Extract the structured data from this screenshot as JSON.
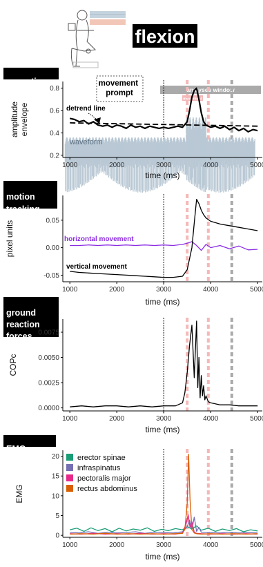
{
  "header": {
    "title": "flexion",
    "prompt_label": "movement\nprompt",
    "analysis_window_label": "analyses window",
    "movement_label": "movement"
  },
  "colors": {
    "black": "#000000",
    "waveform": "#b9c8d4",
    "horizontal": "#8a2be2",
    "prompt_line": "#000000",
    "movement_band": "#f4b8b8",
    "window_band": "#aaaaaa",
    "emg_erector": "#1b9e77",
    "emg_infraspinatus": "#7570b3",
    "emg_pectoralis": "#e7298a",
    "emg_rectus": "#d95f02"
  },
  "markers": {
    "prompt_ms": 3000,
    "movement_onset_ms": 3500,
    "movement_peak_ms": 3950,
    "window_end_ms": 4450
  },
  "chart_data": [
    {
      "type": "line",
      "panel_label": "acoustics",
      "xlabel": "time (ms)",
      "ylabel": "amplitude\nenvelope",
      "xlim": [
        850,
        5100
      ],
      "ylim": [
        0.18,
        0.86
      ],
      "xticks": [
        1000,
        2000,
        3000,
        4000,
        5000
      ],
      "yticks": [
        0.2,
        0.4,
        0.6,
        0.8
      ],
      "ytick_labels": [
        "0.2",
        "0.4",
        "0.6",
        "0.8"
      ],
      "annotations": [
        "detrend line",
        "waveform"
      ],
      "series": [
        {
          "name": "envelope",
          "x": [
            1000,
            1100,
            1200,
            1300,
            1400,
            1500,
            1600,
            1700,
            1800,
            1900,
            2000,
            2100,
            2200,
            2300,
            2400,
            2500,
            2600,
            2700,
            2800,
            2900,
            3000,
            3100,
            3200,
            3300,
            3400,
            3500,
            3550,
            3600,
            3650,
            3700,
            3750,
            3800,
            3850,
            3900,
            3950,
            4000,
            4100,
            4200,
            4300,
            4400,
            4500,
            4600,
            4700,
            4800,
            4900,
            5000
          ],
          "y": [
            0.53,
            0.52,
            0.5,
            0.51,
            0.48,
            0.5,
            0.47,
            0.46,
            0.47,
            0.45,
            0.47,
            0.46,
            0.44,
            0.47,
            0.45,
            0.46,
            0.44,
            0.46,
            0.45,
            0.44,
            0.45,
            0.44,
            0.45,
            0.46,
            0.45,
            0.5,
            0.6,
            0.72,
            0.78,
            0.8,
            0.7,
            0.58,
            0.5,
            0.47,
            0.46,
            0.45,
            0.46,
            0.44,
            0.46,
            0.43,
            0.45,
            0.42,
            0.44,
            0.41,
            0.43,
            0.42
          ]
        },
        {
          "name": "detrend line",
          "x": [
            1000,
            5000
          ],
          "y": [
            0.49,
            0.46
          ]
        }
      ]
    },
    {
      "type": "line",
      "panel_label": "motion\ntracking",
      "xlabel": "time (ms)",
      "ylabel": "pixel units",
      "xlim": [
        850,
        5100
      ],
      "ylim": [
        -0.062,
        0.095
      ],
      "xticks": [
        1000,
        2000,
        3000,
        4000,
        5000
      ],
      "yticks": [
        -0.05,
        0.0,
        0.05
      ],
      "ytick_labels": [
        "-0.05",
        "0.00",
        "0.05"
      ],
      "annotations": [
        "horizontal movement",
        "vertical movement"
      ],
      "series": [
        {
          "name": "horizontal movement",
          "x": [
            1000,
            1200,
            1400,
            1600,
            1800,
            2000,
            2200,
            2400,
            2600,
            2800,
            3000,
            3200,
            3400,
            3500,
            3600,
            3700,
            3800,
            3900,
            4000,
            4200,
            4400,
            4600,
            4800,
            5000
          ],
          "y": [
            0.004,
            0.004,
            0.005,
            0.004,
            0.005,
            0.004,
            0.005,
            0.004,
            0.005,
            0.004,
            0.005,
            0.004,
            0.006,
            0.008,
            0.011,
            0.004,
            -0.005,
            0.006,
            0.0,
            0.004,
            -0.002,
            0.003,
            -0.004,
            -0.003
          ]
        },
        {
          "name": "vertical movement",
          "x": [
            1000,
            1200,
            1400,
            1600,
            1800,
            2000,
            2200,
            2400,
            2600,
            2800,
            3000,
            3200,
            3400,
            3500,
            3600,
            3650,
            3700,
            3750,
            3800,
            3850,
            3900,
            4000,
            4200,
            4400,
            4600,
            4800,
            5000
          ],
          "y": [
            -0.043,
            -0.045,
            -0.046,
            -0.047,
            -0.048,
            -0.049,
            -0.05,
            -0.051,
            -0.052,
            -0.053,
            -0.054,
            -0.054,
            -0.052,
            -0.04,
            0.0,
            0.045,
            0.088,
            0.08,
            0.068,
            0.06,
            0.054,
            0.048,
            0.043,
            0.04,
            0.037,
            0.034,
            0.031
          ]
        }
      ]
    },
    {
      "type": "line",
      "panel_label": "ground\nreaction\nforces",
      "xlabel": "time (ms)",
      "ylabel": "COPc",
      "xlim": [
        850,
        5100
      ],
      "ylim": [
        -0.0003,
        0.0088
      ],
      "xticks": [
        1000,
        2000,
        3000,
        4000,
        5000
      ],
      "yticks": [
        0.0,
        0.0025,
        0.005,
        0.0075
      ],
      "ytick_labels": [
        "0.0000",
        "0.0025",
        "0.0050",
        "0.0075"
      ],
      "series": [
        {
          "name": "COPc",
          "x": [
            1000,
            1250,
            1500,
            1750,
            2000,
            2250,
            2500,
            2750,
            3000,
            3250,
            3400,
            3450,
            3500,
            3550,
            3600,
            3650,
            3700,
            3725,
            3750,
            3775,
            3800,
            3825,
            3850,
            3875,
            3900,
            3950,
            4000,
            4100,
            4200,
            4400,
            4600,
            4800,
            5000
          ],
          "y": [
            0.0001,
            0.0002,
            0.0001,
            0.0002,
            0.0002,
            0.0001,
            0.0002,
            0.0001,
            0.0002,
            0.0002,
            0.0005,
            0.0015,
            0.0035,
            0.0062,
            0.0082,
            0.003,
            0.0086,
            0.002,
            0.005,
            0.001,
            0.0032,
            0.0012,
            0.0022,
            0.0008,
            0.0012,
            0.0006,
            0.0005,
            0.0004,
            0.0003,
            0.0003,
            0.0002,
            0.0002,
            0.0002
          ]
        }
      ]
    },
    {
      "type": "line",
      "panel_label": "EMG",
      "xlabel": "time (ms)",
      "ylabel": "EMG",
      "xlim": [
        850,
        5100
      ],
      "ylim": [
        -0.5,
        21.5
      ],
      "xticks": [
        1000,
        2000,
        3000,
        4000,
        5000
      ],
      "yticks": [
        0,
        5,
        10,
        15,
        20
      ],
      "ytick_labels": [
        "0",
        "5",
        "10",
        "15",
        "20"
      ],
      "series": [
        {
          "name": "erector spinae",
          "x": [
            1000,
            1150,
            1300,
            1450,
            1600,
            1750,
            1900,
            2050,
            2200,
            2350,
            2500,
            2650,
            2800,
            2950,
            3100,
            3250,
            3400,
            3500,
            3600,
            3700,
            3800,
            3950,
            4100,
            4250,
            4400,
            4550,
            4700,
            4850,
            5000
          ],
          "y": [
            1.4,
            1.8,
            1.0,
            1.9,
            1.2,
            1.7,
            0.9,
            1.8,
            1.1,
            1.6,
            1.3,
            1.9,
            1.0,
            1.5,
            1.2,
            1.7,
            1.4,
            2.2,
            1.6,
            2.4,
            1.3,
            1.8,
            1.0,
            1.6,
            1.2,
            1.7,
            0.9,
            1.4,
            1.1
          ]
        },
        {
          "name": "infraspinatus",
          "x": [
            1000,
            1200,
            1400,
            1600,
            1800,
            2000,
            2200,
            2400,
            2600,
            2800,
            3000,
            3200,
            3400,
            3500,
            3550,
            3600,
            3650,
            3700,
            3750,
            3800,
            4000,
            4200,
            4400,
            4600,
            4800,
            5000
          ],
          "y": [
            0.8,
            0.6,
            0.9,
            0.5,
            0.8,
            0.6,
            0.7,
            0.9,
            0.5,
            0.8,
            0.7,
            0.6,
            0.9,
            2.2,
            3.8,
            1.4,
            4.6,
            1.0,
            2.0,
            0.8,
            0.7,
            0.6,
            0.8,
            0.6,
            0.7,
            0.6
          ]
        },
        {
          "name": "pectoralis major",
          "x": [
            1000,
            1250,
            1500,
            1750,
            2000,
            2250,
            2500,
            2750,
            3000,
            3250,
            3400,
            3480,
            3520,
            3560,
            3600,
            3650,
            3700,
            3800,
            4000,
            4250,
            4500,
            4750,
            5000
          ],
          "y": [
            0.4,
            0.3,
            0.5,
            0.3,
            0.4,
            0.3,
            0.5,
            0.3,
            0.4,
            0.3,
            0.6,
            3.0,
            5.2,
            2.0,
            3.4,
            0.8,
            0.5,
            0.4,
            0.3,
            0.4,
            0.3,
            0.4,
            0.3
          ]
        },
        {
          "name": "rectus abdominus",
          "x": [
            1000,
            1250,
            1500,
            1750,
            2000,
            2250,
            2500,
            2750,
            3000,
            3250,
            3400,
            3450,
            3500,
            3530,
            3560,
            3600,
            3650,
            3700,
            3800,
            4000,
            4250,
            4500,
            4750,
            5000
          ],
          "y": [
            0.3,
            0.4,
            0.3,
            0.5,
            0.3,
            0.4,
            0.3,
            0.4,
            0.3,
            0.4,
            0.5,
            1.5,
            8.0,
            20.5,
            9.0,
            1.5,
            0.6,
            0.4,
            0.3,
            0.4,
            0.3,
            0.4,
            0.3,
            0.4
          ]
        }
      ]
    }
  ]
}
